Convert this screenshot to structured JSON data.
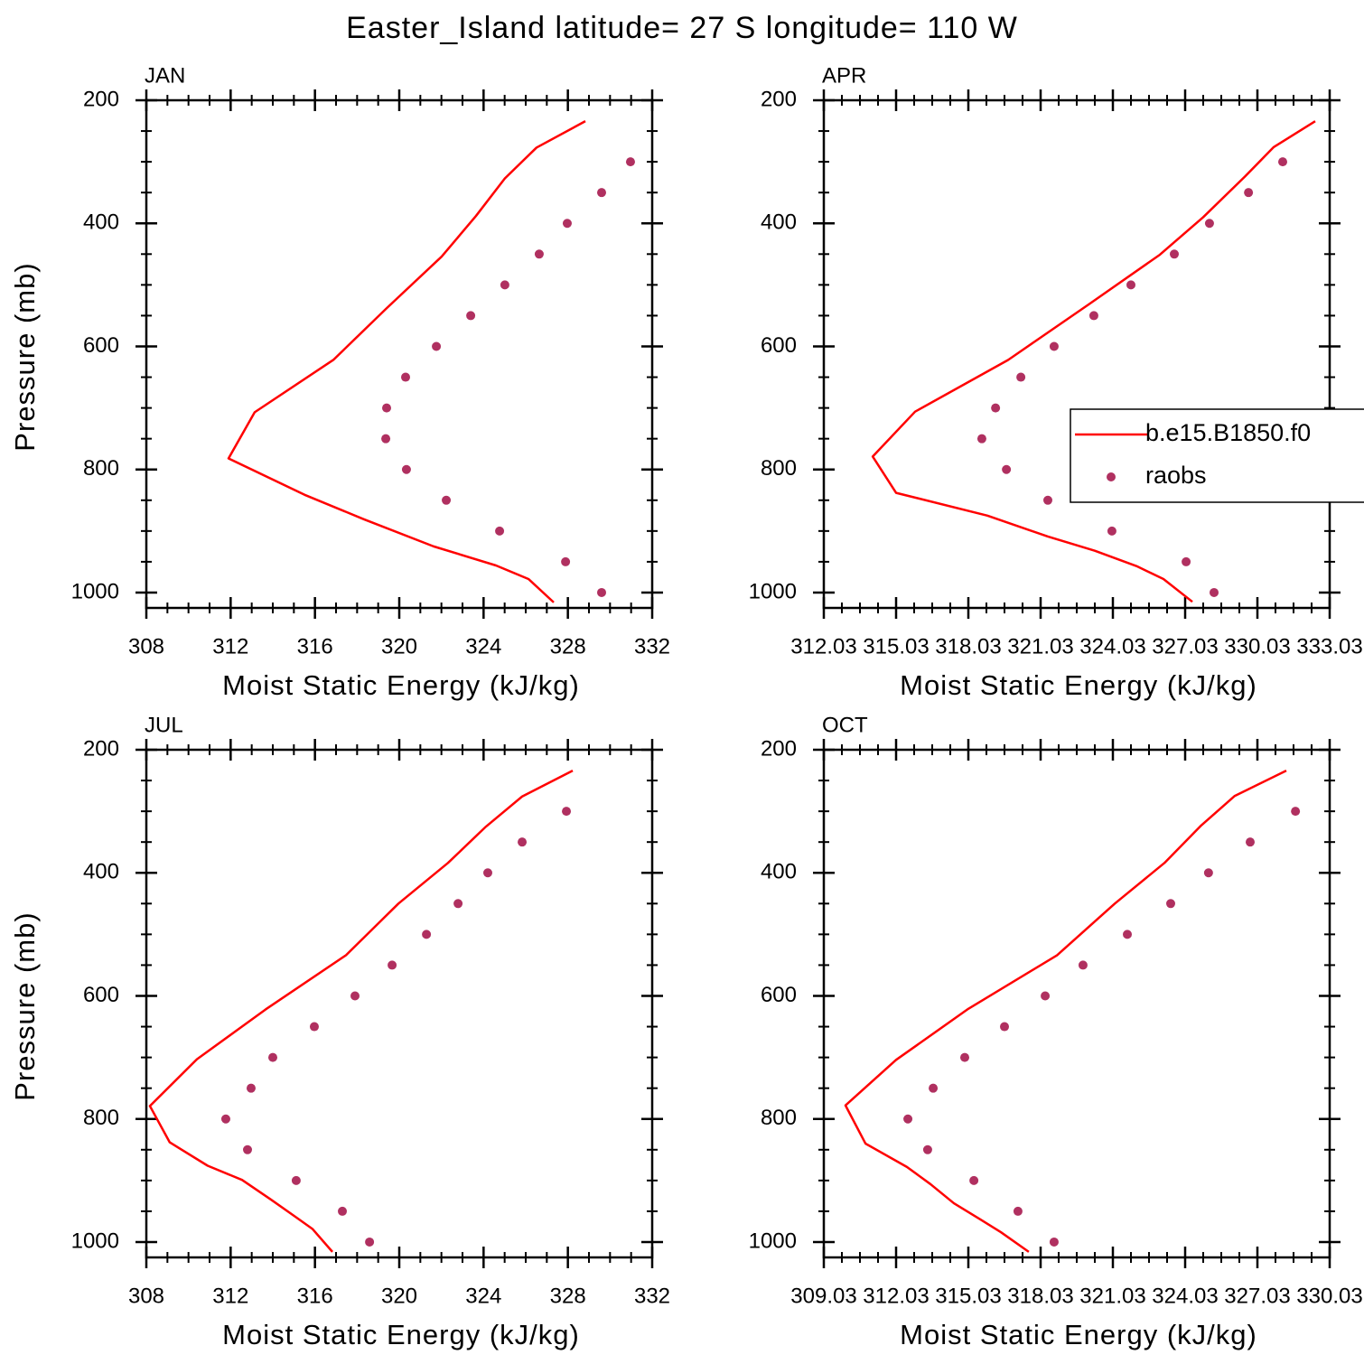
{
  "title": "Easter_Island  latitude= 27 S longitude= 110 W",
  "chart_data": [
    {
      "type": "line",
      "title": "JAN",
      "xlabel": "Moist Static Energy (kJ/kg)",
      "ylabel": "Pressure (mb)",
      "xlim": [
        308,
        332
      ],
      "xticks": [
        308,
        312,
        316,
        320,
        324,
        328,
        332
      ],
      "ylim": [
        1025,
        200
      ],
      "yticks": [
        200,
        400,
        600,
        800,
        1000
      ],
      "series": [
        {
          "name": "b.e15.B1850.f0",
          "mode": "lines",
          "color": "#ff0000",
          "x": [
            328.83,
            326.51,
            325.01,
            323.64,
            322.01,
            319.4,
            316.87,
            313.14,
            311.9,
            315.5,
            318.33,
            321.63,
            324.59,
            326.13,
            327.33
          ],
          "y": [
            234,
            277,
            327,
            388,
            454,
            538,
            622,
            707,
            782,
            841,
            881,
            925,
            956,
            978,
            1016
          ]
        },
        {
          "name": "raobs",
          "mode": "markers",
          "color": "#b03060",
          "x": [
            330.97,
            329.6,
            327.97,
            326.64,
            325.01,
            323.39,
            321.76,
            320.3,
            319.4,
            319.36,
            320.34,
            322.23,
            324.76,
            327.89,
            329.6
          ],
          "y": [
            300,
            350,
            400,
            450,
            500,
            550,
            600,
            650,
            700,
            750,
            800,
            850,
            900,
            950,
            1000
          ]
        }
      ]
    },
    {
      "type": "line",
      "title": "APR",
      "xlabel": "Moist Static Energy (kJ/kg)",
      "legend": "right",
      "xlim": [
        312.03,
        333.03
      ],
      "xticks": [
        312.03,
        315.03,
        318.03,
        321.03,
        324.03,
        327.03,
        330.03,
        333.03
      ],
      "ylim": [
        1025,
        200
      ],
      "yticks": [
        200,
        400,
        600,
        800,
        1000
      ],
      "series": [
        {
          "name": "b.e15.B1850.f0",
          "mode": "lines",
          "color": "#ff0000",
          "x": [
            332.43,
            330.71,
            329.51,
            327.78,
            325.98,
            323.02,
            319.68,
            315.82,
            314.06,
            315.03,
            318.82,
            321.33,
            323.28,
            325.01,
            326.13,
            327.33
          ],
          "y": [
            234,
            276,
            324,
            390,
            451,
            532,
            622,
            706,
            779,
            838,
            875,
            909,
            932,
            957,
            978,
            1015
          ]
        },
        {
          "name": "raobs",
          "mode": "markers",
          "color": "#b03060",
          "x": [
            331.08,
            329.66,
            328.04,
            326.58,
            324.78,
            323.24,
            321.59,
            320.21,
            319.16,
            318.59,
            319.61,
            321.33,
            323.99,
            327.07,
            328.23
          ],
          "y": [
            300,
            350,
            400,
            450,
            500,
            550,
            600,
            650,
            700,
            750,
            800,
            850,
            900,
            950,
            1000
          ]
        }
      ]
    },
    {
      "type": "line",
      "title": "JUL",
      "xlabel": "Moist Static Energy (kJ/kg)",
      "ylabel": "Pressure (mb)",
      "xlim": [
        308,
        332
      ],
      "xticks": [
        308,
        312,
        316,
        320,
        324,
        328,
        332
      ],
      "ylim": [
        1025,
        200
      ],
      "yticks": [
        200,
        400,
        600,
        800,
        1000
      ],
      "series": [
        {
          "name": "b.e15.B1850.f0",
          "mode": "lines",
          "color": "#ff0000",
          "x": [
            328.23,
            325.83,
            324.11,
            322.31,
            319.96,
            317.47,
            313.66,
            310.4,
            308.17,
            309.11,
            310.91,
            312.54,
            313.91,
            315.07,
            315.89,
            316.83
          ],
          "y": [
            234,
            276,
            325,
            384,
            450,
            534,
            622,
            703,
            779,
            838,
            876,
            899,
            931,
            959,
            979,
            1016
          ]
        },
        {
          "name": "raobs",
          "mode": "markers",
          "color": "#b03060",
          "x": [
            327.93,
            325.83,
            324.2,
            322.79,
            321.29,
            319.66,
            317.9,
            315.97,
            314.0,
            312.97,
            311.77,
            312.8,
            315.11,
            317.3,
            318.59
          ],
          "y": [
            300,
            350,
            400,
            450,
            500,
            550,
            600,
            650,
            700,
            750,
            800,
            850,
            900,
            950,
            1000
          ]
        }
      ]
    },
    {
      "type": "line",
      "title": "OCT",
      "xlabel": "Moist Static Energy (kJ/kg)",
      "xlim": [
        309.03,
        330.03
      ],
      "xticks": [
        309.03,
        312.03,
        315.03,
        318.03,
        321.03,
        324.03,
        327.03,
        330.03
      ],
      "ylim": [
        1025,
        200
      ],
      "yticks": [
        200,
        400,
        600,
        800,
        1000
      ],
      "series": [
        {
          "name": "b.e15.B1850.f0",
          "mode": "lines",
          "color": "#ff0000",
          "x": [
            328.23,
            326.09,
            324.67,
            323.17,
            321.11,
            318.71,
            315.03,
            312.03,
            309.93,
            310.76,
            312.48,
            313.46,
            314.43,
            315.52,
            316.38,
            317.54
          ],
          "y": [
            234,
            275,
            324,
            384,
            450,
            534,
            621,
            704,
            778,
            840,
            878,
            906,
            937,
            963,
            984,
            1016
          ]
        },
        {
          "name": "raobs",
          "mode": "markers",
          "color": "#b03060",
          "x": [
            328.61,
            326.73,
            325.0,
            323.43,
            321.63,
            319.79,
            318.22,
            316.53,
            314.88,
            313.57,
            312.52,
            313.34,
            315.26,
            317.09,
            318.59
          ],
          "y": [
            300,
            350,
            400,
            450,
            500,
            550,
            600,
            650,
            700,
            750,
            800,
            850,
            900,
            950,
            1000
          ]
        }
      ]
    }
  ]
}
